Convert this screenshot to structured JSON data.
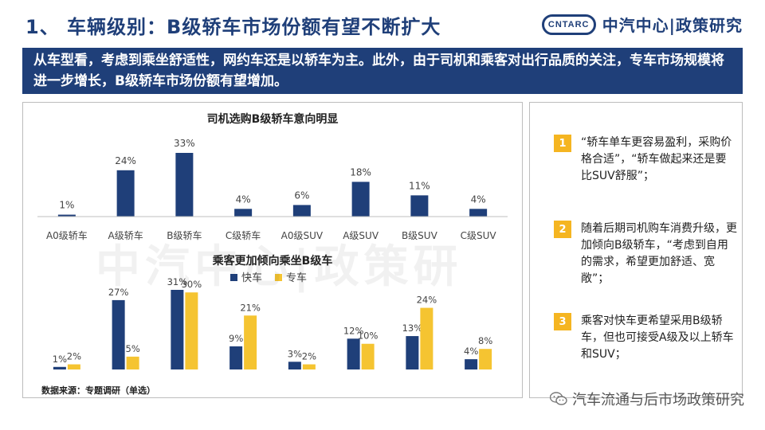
{
  "header": {
    "title": "1、 车辆级别：B级轿车市场份额有望不断扩大",
    "logo_mark": "CNTARC",
    "logo_text": "中汽中心|政策研究"
  },
  "banner": {
    "text": "从车型看，考虑到乘坐舒适性，网约车还是以轿车为主。此外，由于司机和乘客对出行品质的关注，专车市场规模将进一步增长，B级轿车市场份额有望增加。"
  },
  "watermark": "中汽中心|政策研",
  "chart_data": [
    {
      "type": "bar",
      "title": "司机选购B级轿车意向明显",
      "categories": [
        "A0级轿车",
        "A级轿车",
        "B级轿车",
        "C级轿车",
        "A0级SUV",
        "A级SUV",
        "B级SUV",
        "C级SUV"
      ],
      "values": [
        1,
        24,
        33,
        4,
        6,
        18,
        11,
        4
      ],
      "labels": [
        "1%",
        "24%",
        "33%",
        "4%",
        "6%",
        "18%",
        "11%",
        "4%"
      ],
      "unit": "%",
      "color": "#1f3f79",
      "grid": false
    },
    {
      "type": "bar",
      "title": "乘客更加倾向乘坐B级车",
      "legend_position": "top",
      "series": [
        {
          "name": "快车",
          "color": "#1f3f79",
          "values": [
            1,
            27,
            31,
            9,
            3,
            12,
            13,
            4
          ],
          "labels": [
            "1%",
            "27%",
            "31%",
            "9%",
            "3%",
            "12%",
            "13%",
            "4%"
          ]
        },
        {
          "name": "专车",
          "color": "#f5c431",
          "values": [
            2,
            5,
            30,
            21,
            2,
            10,
            24,
            8
          ],
          "labels": [
            "2%",
            "5%",
            "30%",
            "21%",
            "2%",
            "10%",
            "24%",
            "8%"
          ]
        }
      ],
      "unit": "%",
      "grid": false
    }
  ],
  "notes": [
    {
      "num": "1",
      "text": "“轿车单车更容易盈利，采购价格合适”，“轿车做起来还是要比SUV舒服”；"
    },
    {
      "num": "2",
      "text": "随着后期司机购车消费升级，更加倾向B级轿车，“考虑到自用的需求，希望更加舒适、宽敞”；"
    },
    {
      "num": "3",
      "text": "乘客对快车更希望采用B级轿车，但也可接受A级及以上轿车和SUV；"
    }
  ],
  "source": "数据来源：专题调研（单选）",
  "footer": {
    "wechat_text": "汽车流通与后市场政策研究",
    "icon": "wechat-icon"
  }
}
